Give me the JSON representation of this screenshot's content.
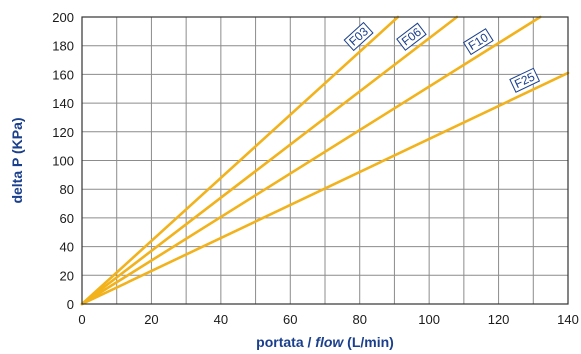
{
  "chart_data": {
    "type": "line",
    "xlabel_prefix": "portata / ",
    "xlabel_italic": "flow",
    "xlabel_suffix": " (L/min)",
    "ylabel": "delta P (KPa)",
    "xlim": [
      0,
      140
    ],
    "ylim": [
      0,
      200
    ],
    "xticks": [
      0,
      20,
      40,
      60,
      80,
      100,
      120,
      140
    ],
    "yticks": [
      0,
      20,
      40,
      60,
      80,
      100,
      120,
      140,
      160,
      180,
      200
    ],
    "x_minor_step": 10,
    "y_minor_step": 20,
    "grid": true,
    "series": [
      {
        "name": "F03",
        "x": [
          0,
          91
        ],
        "y": [
          0,
          200
        ]
      },
      {
        "name": "F06",
        "x": [
          0,
          108
        ],
        "y": [
          0,
          200
        ]
      },
      {
        "name": "F10",
        "x": [
          0,
          132
        ],
        "y": [
          0,
          200
        ]
      },
      {
        "name": "F25",
        "x": [
          0,
          140
        ],
        "y": [
          0,
          161
        ]
      }
    ],
    "colors": {
      "line": "#f2b21b",
      "grid": "#8c8c8c",
      "frame": "#333333",
      "label_border": "#1a3f8c",
      "title": "#1a3f8c"
    }
  }
}
